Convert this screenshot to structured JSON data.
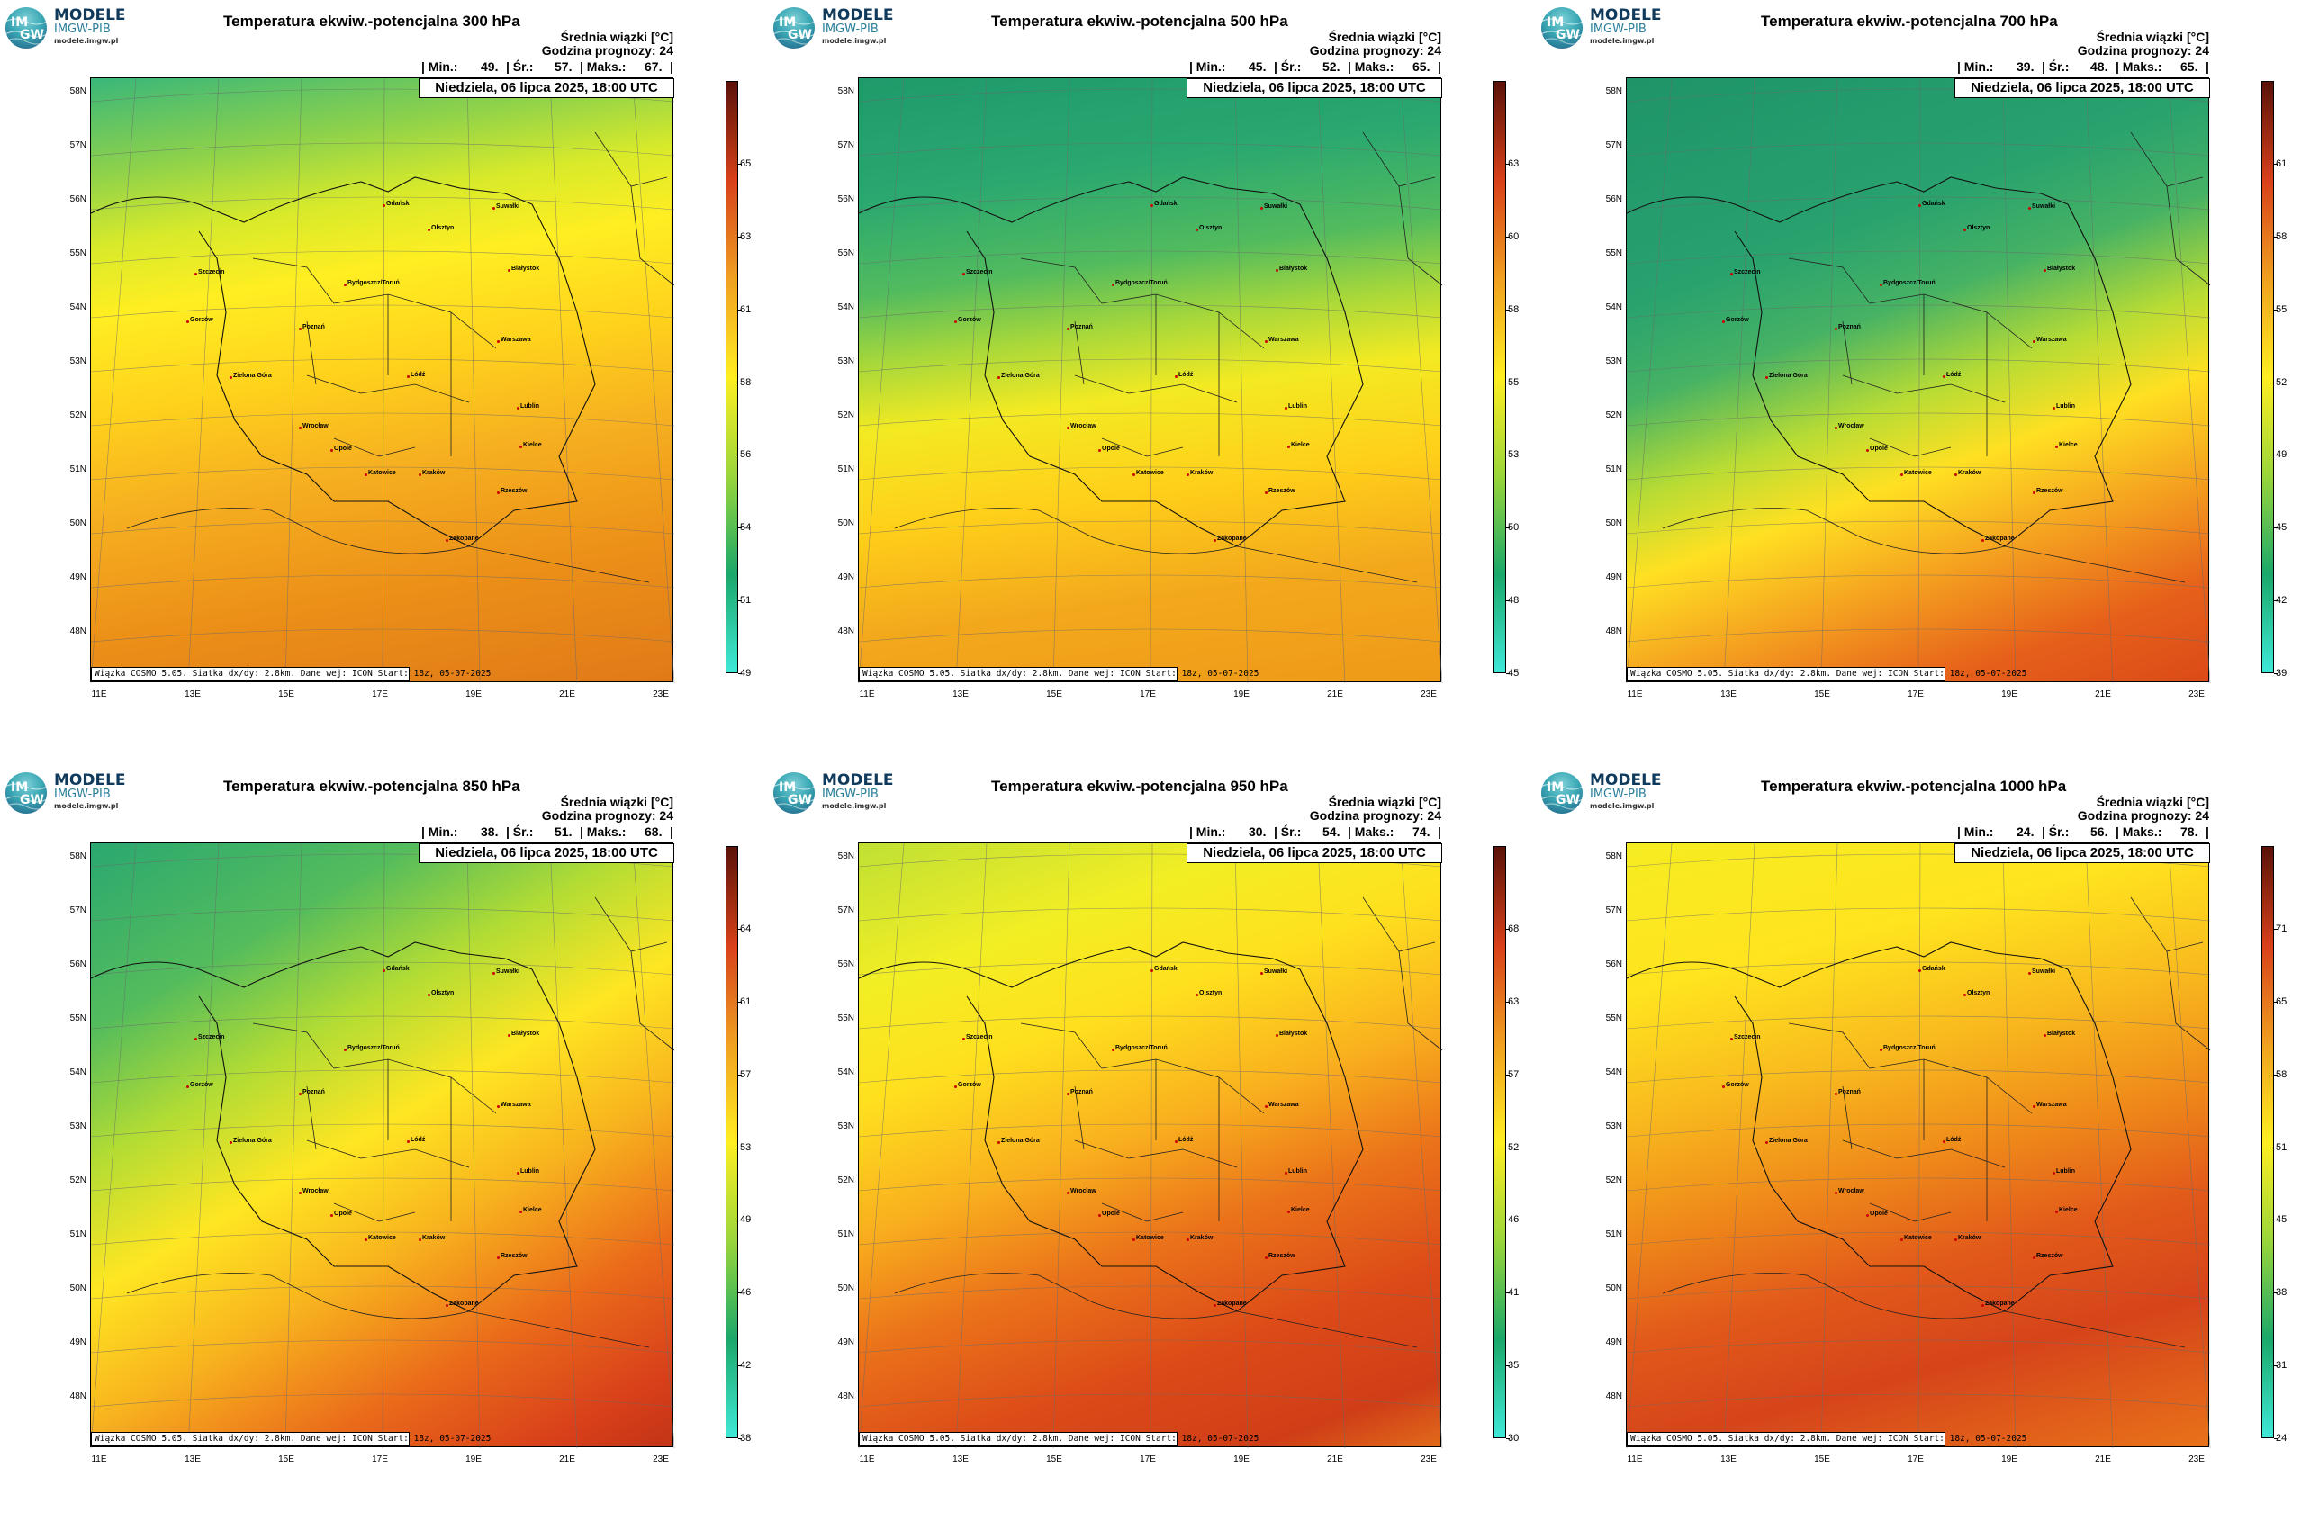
{
  "logo": {
    "mark_top": "IM",
    "mark_bottom": "GW",
    "name": "MODELE",
    "org": "IMGW-PIB",
    "url": "modele.imgw.pl"
  },
  "common": {
    "info_line1": "Średnia wiązki [°C]",
    "info_line2": "Godzina prognozy: 24",
    "min_label": "| Min.:",
    "avg_label": "| Śr.:",
    "max_label": "| Maks.:",
    "end_bar": "|",
    "date": "Niedziela, 06 lipca 2025, 18:00 UTC",
    "footer": "Wiązka COSMO 5.05. Siatka dx/dy: 2.8km. Dane wej: ICON Start: 18z, 05-07-2025",
    "lat_labels": [
      "58N",
      "57N",
      "56N",
      "55N",
      "54N",
      "53N",
      "52N",
      "51N",
      "50N",
      "49N",
      "48N"
    ],
    "lon_labels": [
      "11E",
      "13E",
      "15E",
      "17E",
      "19E",
      "21E",
      "23E"
    ],
    "cities": [
      "Gdańsk",
      "Olsztyn",
      "Suwałki",
      "Szczecin",
      "Bydgoszcz/Toruń",
      "Białystok",
      "Gorzów",
      "Poznań",
      "Warszawa",
      "Zielona Góra",
      "Łódź",
      "Lublin",
      "Wrocław",
      "Opole",
      "Kielce",
      "Katowice",
      "Kraków",
      "Rzeszów",
      "Zakopane"
    ],
    "colors": {
      "cold": "#40e8d8",
      "green": "#1aa86a",
      "lime": "#9ad63a",
      "yellow": "#ffee22",
      "orange": "#f0a020",
      "red": "#d8401a",
      "dark": "#5a1208"
    }
  },
  "panels": [
    {
      "id": "p300",
      "title": "Temperatura ekwiw.-potencjalna 300 hPa",
      "min": "49.",
      "avg": "57.",
      "max": "67.",
      "colorbar": [
        "65",
        "63",
        "61",
        "58",
        "56",
        "54",
        "51",
        "49"
      ]
    },
    {
      "id": "p500",
      "title": "Temperatura ekwiw.-potencjalna 500 hPa",
      "min": "45.",
      "avg": "52.",
      "max": "65.",
      "colorbar": [
        "63",
        "60",
        "58",
        "55",
        "53",
        "50",
        "48",
        "45"
      ]
    },
    {
      "id": "p700",
      "title": "Temperatura ekwiw.-potencjalna 700 hPa",
      "min": "39.",
      "avg": "48.",
      "max": "65.",
      "colorbar": [
        "61",
        "58",
        "55",
        "52",
        "49",
        "45",
        "42",
        "39"
      ]
    },
    {
      "id": "p850",
      "title": "Temperatura ekwiw.-potencjalna 850 hPa",
      "min": "38.",
      "avg": "51.",
      "max": "68.",
      "colorbar": [
        "64",
        "61",
        "57",
        "53",
        "49",
        "46",
        "42",
        "38"
      ]
    },
    {
      "id": "p950",
      "title": "Temperatura ekwiw.-potencjalna 950 hPa",
      "min": "30.",
      "avg": "54.",
      "max": "74.",
      "colorbar": [
        "68",
        "63",
        "57",
        "52",
        "46",
        "41",
        "35",
        "30"
      ]
    },
    {
      "id": "p1000",
      "title": "Temperatura ekwiw.-potencjalna 1000 hPa",
      "min": "24.",
      "avg": "56.",
      "max": "78.",
      "colorbar": [
        "71",
        "65",
        "58",
        "51",
        "45",
        "38",
        "31",
        "24"
      ]
    }
  ]
}
